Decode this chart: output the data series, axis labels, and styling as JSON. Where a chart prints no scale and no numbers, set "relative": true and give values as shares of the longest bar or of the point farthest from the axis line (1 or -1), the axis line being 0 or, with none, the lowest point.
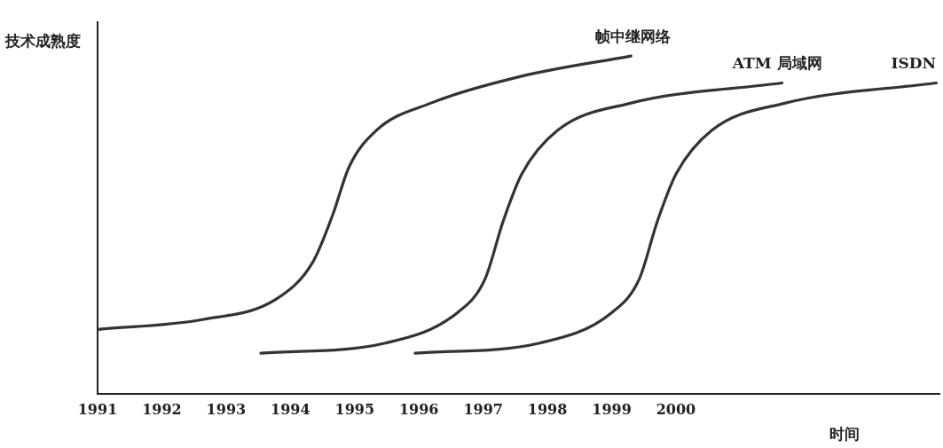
{
  "chart_data": {
    "type": "line",
    "relative": true,
    "xlabel": "时间",
    "ylabel": "技术成熟度",
    "xlim": [
      1991,
      2004.1
    ],
    "xticks": [
      1991,
      1992,
      1993,
      1994,
      1995,
      1996,
      1997,
      1998,
      1999,
      2000
    ],
    "grid": false,
    "legend": false,
    "marker": "none",
    "line_style": "solid",
    "series": [
      {
        "name": "帧中继网络",
        "color": "#333333",
        "x": [
          1991.0,
          1992.65,
          1993.78,
          1994.35,
          1994.66,
          1994.91,
          1995.34,
          1996.18,
          1997.6,
          1999.3
        ],
        "values": [
          0.19,
          0.22,
          0.28,
          0.39,
          0.53,
          0.67,
          0.78,
          0.86,
          0.94,
          1.0
        ]
      },
      {
        "name": "ATM 局域网",
        "color": "#333333",
        "x": [
          1993.54,
          1995.48,
          1996.6,
          1997.03,
          1997.31,
          1997.6,
          1998.16,
          1999.29,
          2001.65
        ],
        "values": [
          0.12,
          0.15,
          0.24,
          0.34,
          0.51,
          0.65,
          0.78,
          0.86,
          0.92
        ]
      },
      {
        "name": "ISDN",
        "color": "#333333",
        "x": [
          1995.94,
          1997.88,
          1999.0,
          1999.43,
          1999.71,
          2000.0,
          2000.56,
          2001.69,
          2004.05
        ],
        "values": [
          0.12,
          0.15,
          0.24,
          0.34,
          0.51,
          0.65,
          0.78,
          0.86,
          0.92
        ]
      }
    ]
  }
}
